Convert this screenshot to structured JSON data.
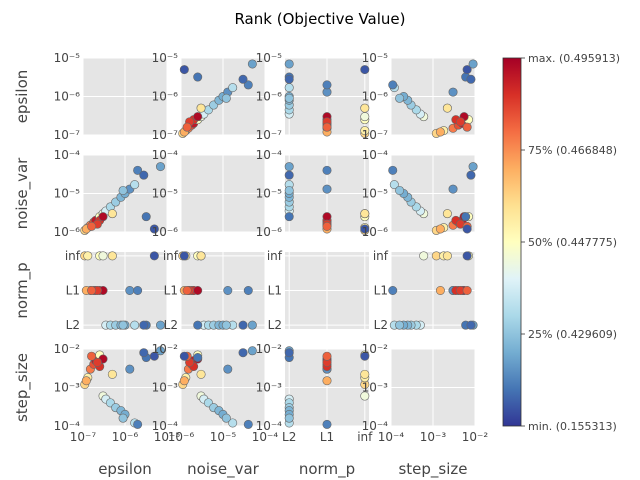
{
  "chart_data": {
    "type": "scatter",
    "title": "Rank (Objective Value)",
    "params": [
      "epsilon",
      "noise_var",
      "norm_p",
      "step_size"
    ],
    "axes": {
      "epsilon": {
        "scale": "log",
        "range": [
          1e-07,
          1e-05
        ],
        "ticks": [
          {
            "v": 1e-07,
            "t": "10⁻⁷"
          },
          {
            "v": 1e-06,
            "t": "10⁻⁶"
          },
          {
            "v": 1e-05,
            "t": "10⁻⁵"
          }
        ]
      },
      "noise_var": {
        "scale": "log",
        "range": [
          1e-06,
          0.0001
        ],
        "ticks": [
          {
            "v": 1e-06,
            "t": "10⁻⁶"
          },
          {
            "v": 1e-05,
            "t": "10⁻⁵"
          },
          {
            "v": 0.0001,
            "t": "10⁻⁴"
          }
        ]
      },
      "norm_p": {
        "scale": "categorical",
        "categories": [
          "L2",
          "L1",
          "inf"
        ]
      },
      "step_size": {
        "scale": "log",
        "range": [
          0.0001,
          0.01
        ],
        "ticks": [
          {
            "v": 0.0001,
            "t": "10⁻⁴"
          },
          {
            "v": 0.001,
            "t": "10⁻³"
          },
          {
            "v": 0.01,
            "t": "10⁻²"
          }
        ]
      }
    },
    "trials": [
      {
        "epsilon": 1.1e-07,
        "noise_var": 1.1e-06,
        "norm_p": "inf",
        "step_size": 0.0012,
        "rank": 0.62
      },
      {
        "epsilon": 1.3e-07,
        "noise_var": 1.3e-06,
        "norm_p": "inf",
        "step_size": 0.0018,
        "rank": 0.55
      },
      {
        "epsilon": 1.5e-07,
        "noise_var": 1.5e-06,
        "norm_p": "L1",
        "step_size": 0.003,
        "rank": 0.78
      },
      {
        "epsilon": 1.2e-07,
        "noise_var": 1.2e-06,
        "norm_p": "L1",
        "step_size": 0.0015,
        "rank": 0.7
      },
      {
        "epsilon": 1.8e-07,
        "noise_var": 1.8e-06,
        "norm_p": "L1",
        "step_size": 0.004,
        "rank": 0.85
      },
      {
        "epsilon": 2e-07,
        "noise_var": 2e-06,
        "norm_p": "L1",
        "step_size": 0.005,
        "rank": 0.95
      },
      {
        "epsilon": 2.5e-07,
        "noise_var": 2.5e-06,
        "norm_p": "inf",
        "step_size": 0.007,
        "rank": 0.5
      },
      {
        "epsilon": 3e-07,
        "noise_var": 3e-06,
        "norm_p": "inf",
        "step_size": 0.0006,
        "rank": 0.45
      },
      {
        "epsilon": 3.5e-07,
        "noise_var": 3.5e-06,
        "norm_p": "L2",
        "step_size": 0.0005,
        "rank": 0.38
      },
      {
        "epsilon": 4.5e-07,
        "noise_var": 4.5e-06,
        "norm_p": "L2",
        "step_size": 0.0004,
        "rank": 0.3
      },
      {
        "epsilon": 6e-07,
        "noise_var": 6e-06,
        "norm_p": "L2",
        "step_size": 0.0003,
        "rank": 0.27
      },
      {
        "epsilon": 8e-07,
        "noise_var": 8e-06,
        "norm_p": "L2",
        "step_size": 0.00025,
        "rank": 0.22
      },
      {
        "epsilon": 1e-06,
        "noise_var": 1e-05,
        "norm_p": "L2",
        "step_size": 0.0002,
        "rank": 0.2
      },
      {
        "epsilon": 1.3e-06,
        "noise_var": 1.3e-05,
        "norm_p": "L1",
        "step_size": 0.003,
        "rank": 0.15
      },
      {
        "epsilon": 1.7e-06,
        "noise_var": 1.7e-05,
        "norm_p": "L2",
        "step_size": 0.00012,
        "rank": 0.32
      },
      {
        "epsilon": 2.5e-07,
        "noise_var": 2e-06,
        "norm_p": "L1",
        "step_size": 0.0035,
        "rank": 0.9
      },
      {
        "epsilon": 3e-07,
        "noise_var": 2.5e-06,
        "norm_p": "L1",
        "step_size": 0.0055,
        "rank": 0.98
      },
      {
        "epsilon": 2.2e-07,
        "noise_var": 1.6e-06,
        "norm_p": "L1",
        "step_size": 0.0045,
        "rank": 0.88
      },
      {
        "epsilon": 1.6e-07,
        "noise_var": 1.4e-06,
        "norm_p": "L1",
        "step_size": 0.0065,
        "rank": 0.82
      },
      {
        "epsilon": 3.2e-06,
        "noise_var": 2.5e-06,
        "norm_p": "L2",
        "step_size": 0.006,
        "rank": 0.1
      },
      {
        "epsilon": 5e-06,
        "noise_var": 1.2e-06,
        "norm_p": "inf",
        "step_size": 0.0065,
        "rank": 0.05
      },
      {
        "epsilon": 7e-06,
        "noise_var": 5e-05,
        "norm_p": "L2",
        "step_size": 0.009,
        "rank": 0.18
      },
      {
        "epsilon": 2e-06,
        "noise_var": 4e-05,
        "norm_p": "L1",
        "step_size": 0.00011,
        "rank": 0.12
      },
      {
        "epsilon": 2.8e-06,
        "noise_var": 3e-05,
        "norm_p": "L2",
        "step_size": 0.008,
        "rank": 0.08
      },
      {
        "epsilon": 5e-07,
        "noise_var": 3e-06,
        "norm_p": "inf",
        "step_size": 0.0022,
        "rank": 0.58
      },
      {
        "epsilon": 9e-07,
        "noise_var": 1.2e-05,
        "norm_p": "L2",
        "step_size": 0.00016,
        "rank": 0.25
      }
    ],
    "colorbar": {
      "ticks": [
        {
          "pos": 1.0,
          "label": "max. (0.495913)"
        },
        {
          "pos": 0.75,
          "label": "75% (0.466848)"
        },
        {
          "pos": 0.5,
          "label": "50% (0.447775)"
        },
        {
          "pos": 0.25,
          "label": "25% (0.429609)"
        },
        {
          "pos": 0.0,
          "label": "min. (0.155313)"
        }
      ],
      "colormap": "RdYlBu_r",
      "stops": [
        "#313695",
        "#4575b4",
        "#74add1",
        "#abd9e9",
        "#e0f3f8",
        "#ffffbf",
        "#fee090",
        "#fdae61",
        "#f46d43",
        "#d73027",
        "#a50026"
      ]
    },
    "grid": true,
    "panel_background": "#e5e5e5"
  }
}
